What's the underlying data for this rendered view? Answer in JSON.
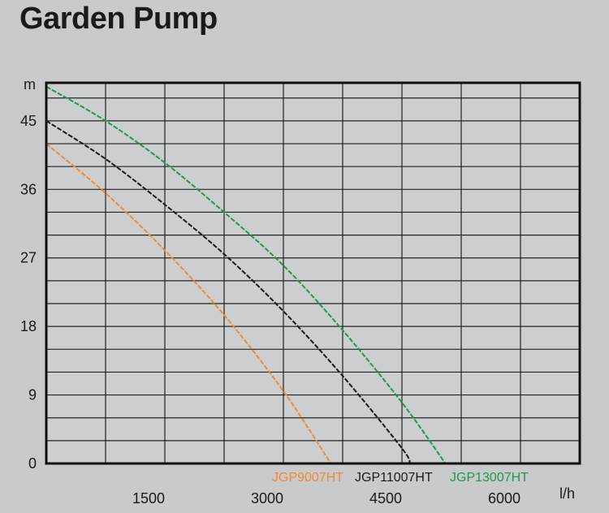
{
  "title": "Garden Pump",
  "chart_data": {
    "type": "line",
    "title": "Garden Pump",
    "xlabel": "l/h",
    "ylabel": "m",
    "xlim": [
      0,
      6750
    ],
    "ylim": [
      0,
      50
    ],
    "x_ticks": [
      1500,
      3000,
      4500,
      6000
    ],
    "y_ticks": [
      0,
      9,
      18,
      27,
      36,
      45
    ],
    "grid": true,
    "legend_position": "bottom-right",
    "series": [
      {
        "name": "JGP9007HT",
        "color": "#f28a2e",
        "x": [
          0,
          750,
          1500,
          2250,
          3000,
          3600
        ],
        "y": [
          42,
          35.5,
          28,
          19.5,
          9.5,
          0
        ]
      },
      {
        "name": "JGP11007HT",
        "color": "#1a1a1a",
        "x": [
          0,
          750,
          1500,
          2250,
          3000,
          3750,
          4500,
          4600
        ],
        "y": [
          45,
          40,
          34,
          27.5,
          20,
          11.5,
          2,
          0
        ]
      },
      {
        "name": "JGP13007HT",
        "color": "#1f9a4a",
        "x": [
          0,
          750,
          1500,
          2250,
          3000,
          3750,
          4500,
          5050
        ],
        "y": [
          49.5,
          45,
          39.5,
          33,
          26,
          17.5,
          8,
          0
        ]
      }
    ]
  }
}
